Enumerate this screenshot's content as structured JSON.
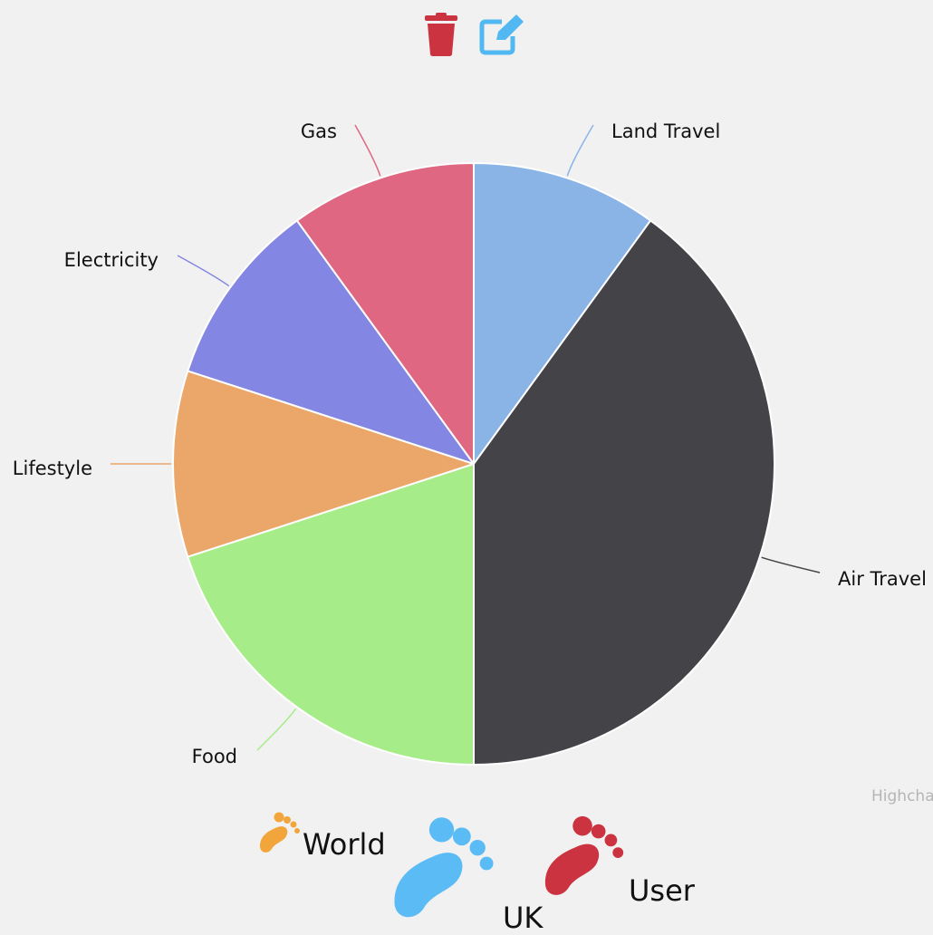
{
  "toolbar": {
    "delete_icon": "trash-icon",
    "edit_icon": "edit-icon",
    "delete_color": "#cc3340",
    "edit_color": "#52b8f2"
  },
  "chart_data": {
    "type": "pie",
    "slices": [
      {
        "label": "Land Travel",
        "value": 10,
        "color": "#8ab4e6"
      },
      {
        "label": "Air Travel",
        "value": 40,
        "color": "#434348"
      },
      {
        "label": "Food",
        "value": 20,
        "color": "#a6ec88"
      },
      {
        "label": "Lifestyle",
        "value": 10,
        "color": "#eba66a"
      },
      {
        "label": "Electricity",
        "value": 10,
        "color": "#8386e2"
      },
      {
        "label": "Gas",
        "value": 10,
        "color": "#e06782"
      }
    ],
    "credits": "Highcharts.com"
  },
  "footprints": {
    "items": [
      {
        "label": "World",
        "color": "#f2a53a"
      },
      {
        "label": "UK",
        "color": "#5bbcf5"
      },
      {
        "label": "User",
        "color": "#cc3340"
      }
    ]
  }
}
